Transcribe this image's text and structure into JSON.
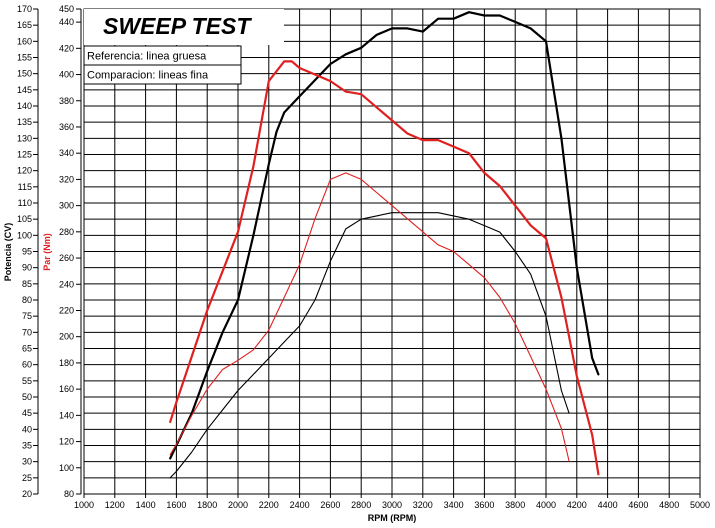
{
  "chart_data": {
    "type": "line",
    "title": "SWEEP TEST",
    "xlabel": "RPM (RPM)",
    "ylabel_left": "Potencia (CV)",
    "ylabel_right": "Par (Nm)",
    "legend": [
      "Referencia: linea gruesa",
      "Comparacion: lineas fina"
    ],
    "legend_position": "top-left",
    "grid": true,
    "xlim": [
      1000,
      5000
    ],
    "x_ticks": [
      1000,
      1200,
      1400,
      1600,
      1800,
      2000,
      2200,
      2400,
      2600,
      2800,
      3000,
      3200,
      3400,
      3600,
      3800,
      4000,
      4200,
      4400,
      4600,
      4800,
      5000
    ],
    "ylim_power": [
      20,
      170
    ],
    "power_ticks": [
      20,
      25,
      30,
      35,
      40,
      45,
      50,
      55,
      60,
      65,
      70,
      75,
      80,
      85,
      90,
      95,
      100,
      105,
      110,
      115,
      120,
      125,
      130,
      135,
      140,
      145,
      150,
      155,
      160,
      165,
      170
    ],
    "ylim_torque": [
      80,
      450
    ],
    "torque_ticks": [
      80,
      100,
      120,
      140,
      160,
      180,
      200,
      220,
      240,
      260,
      280,
      300,
      320,
      340,
      360,
      380,
      400,
      420,
      440,
      450
    ],
    "series": [
      {
        "name": "Referencia: linea gruesa",
        "quantity": "Potencia (CV)",
        "color": "#000000",
        "x": [
          1560,
          1600,
          1700,
          1800,
          1900,
          2000,
          2100,
          2200,
          2250,
          2300,
          2400,
          2500,
          2600,
          2700,
          2800,
          2900,
          3000,
          3100,
          3200,
          3300,
          3400,
          3500,
          3600,
          3700,
          3800,
          3900,
          4000,
          4100,
          4200,
          4300,
          4340
        ],
        "y": [
          31,
          35,
          45,
          58,
          70,
          80,
          100,
          122,
          132,
          138,
          143,
          148,
          153,
          156,
          158,
          162,
          164,
          164,
          163,
          167,
          167,
          169,
          168,
          168,
          166,
          164,
          160,
          130,
          90,
          62,
          57
        ]
      },
      {
        "name": "Referencia: linea gruesa",
        "quantity": "Par (Nm)",
        "color": "#e02020",
        "x": [
          1560,
          1600,
          1700,
          1800,
          1900,
          2000,
          2100,
          2200,
          2300,
          2350,
          2400,
          2500,
          2600,
          2700,
          2800,
          2900,
          3000,
          3100,
          3200,
          3300,
          3400,
          3500,
          3600,
          3700,
          3800,
          3900,
          4000,
          4100,
          4200,
          4300,
          4340
        ],
        "y": [
          135,
          150,
          185,
          220,
          250,
          280,
          330,
          395,
          410,
          410,
          405,
          400,
          395,
          387,
          385,
          375,
          365,
          355,
          350,
          350,
          345,
          340,
          325,
          315,
          300,
          285,
          275,
          230,
          170,
          125,
          95
        ]
      },
      {
        "name": "Comparacion: lineas fina",
        "quantity": "Potencia (CV)",
        "color": "#000000",
        "x": [
          1560,
          1600,
          1700,
          1800,
          1900,
          2000,
          2100,
          2200,
          2300,
          2400,
          2500,
          2600,
          2700,
          2800,
          2900,
          3000,
          3100,
          3200,
          3300,
          3400,
          3500,
          3600,
          3700,
          3800,
          3900,
          4000,
          4100,
          4150
        ],
        "y": [
          25,
          27,
          33,
          40,
          46,
          52,
          57,
          62,
          67,
          72,
          80,
          92,
          102,
          105,
          106,
          107,
          107,
          107,
          107,
          106,
          105,
          103,
          101,
          95,
          88,
          75,
          52,
          45
        ]
      },
      {
        "name": "Comparacion: lineas fina",
        "quantity": "Par (Nm)",
        "color": "#e02020",
        "x": [
          1560,
          1600,
          1700,
          1800,
          1900,
          2000,
          2100,
          2200,
          2300,
          2400,
          2500,
          2600,
          2700,
          2800,
          2900,
          3000,
          3100,
          3200,
          3300,
          3400,
          3500,
          3600,
          3700,
          3800,
          3900,
          4000,
          4100,
          4150
        ],
        "y": [
          110,
          118,
          140,
          160,
          175,
          182,
          190,
          205,
          230,
          255,
          290,
          320,
          325,
          320,
          310,
          300,
          290,
          280,
          270,
          265,
          255,
          245,
          230,
          210,
          185,
          160,
          130,
          105
        ]
      }
    ]
  }
}
